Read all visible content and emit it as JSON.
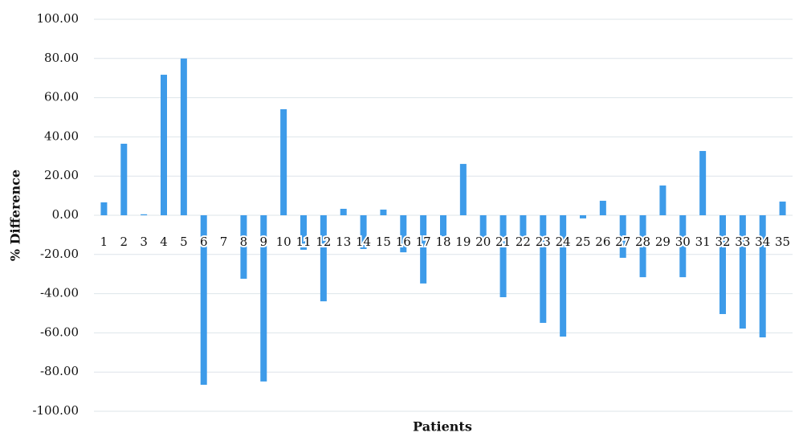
{
  "chart_data": {
    "type": "bar",
    "x_label": "Patients",
    "y_label": "% Difference",
    "categories": [
      "1",
      "2",
      "3",
      "4",
      "5",
      "6",
      "7",
      "8",
      "9",
      "10",
      "11",
      "12",
      "13",
      "14",
      "15",
      "16",
      "17",
      "18",
      "19",
      "20",
      "21",
      "22",
      "23",
      "24",
      "25",
      "26",
      "27",
      "28",
      "29",
      "30",
      "31",
      "32",
      "33",
      "34",
      "35"
    ],
    "values": [
      6.6,
      36.5,
      0.5,
      71.7,
      80,
      -86.5,
      0,
      -32.4,
      -84.8,
      54.1,
      -17.6,
      -43.9,
      3.3,
      -17.2,
      2.9,
      -18.9,
      -34.8,
      -10.7,
      26.2,
      -13,
      -41.8,
      -13,
      -54.9,
      -61.9,
      -1.6,
      7.4,
      -21.7,
      -31.6,
      15.2,
      -31.6,
      32.8,
      -50.4,
      -57.8,
      -62.3,
      7.0
    ],
    "color": "#3d9be9",
    "ylim": [
      -100,
      100
    ],
    "yticks": [
      {
        "value": -100,
        "label": "-100.00"
      },
      {
        "value": -80,
        "label": "-80.00"
      },
      {
        "value": -60,
        "label": "-60.00"
      },
      {
        "value": -40,
        "label": "-40.00"
      },
      {
        "value": -20,
        "label": "-20.00"
      },
      {
        "value": 0,
        "label": "0.00"
      },
      {
        "value": 20,
        "label": "20.00"
      },
      {
        "value": 40,
        "label": "40.00"
      },
      {
        "value": 60,
        "label": "60.00"
      },
      {
        "value": 80,
        "label": "80.00"
      },
      {
        "value": 100,
        "label": "100.00"
      }
    ],
    "grid": true
  }
}
